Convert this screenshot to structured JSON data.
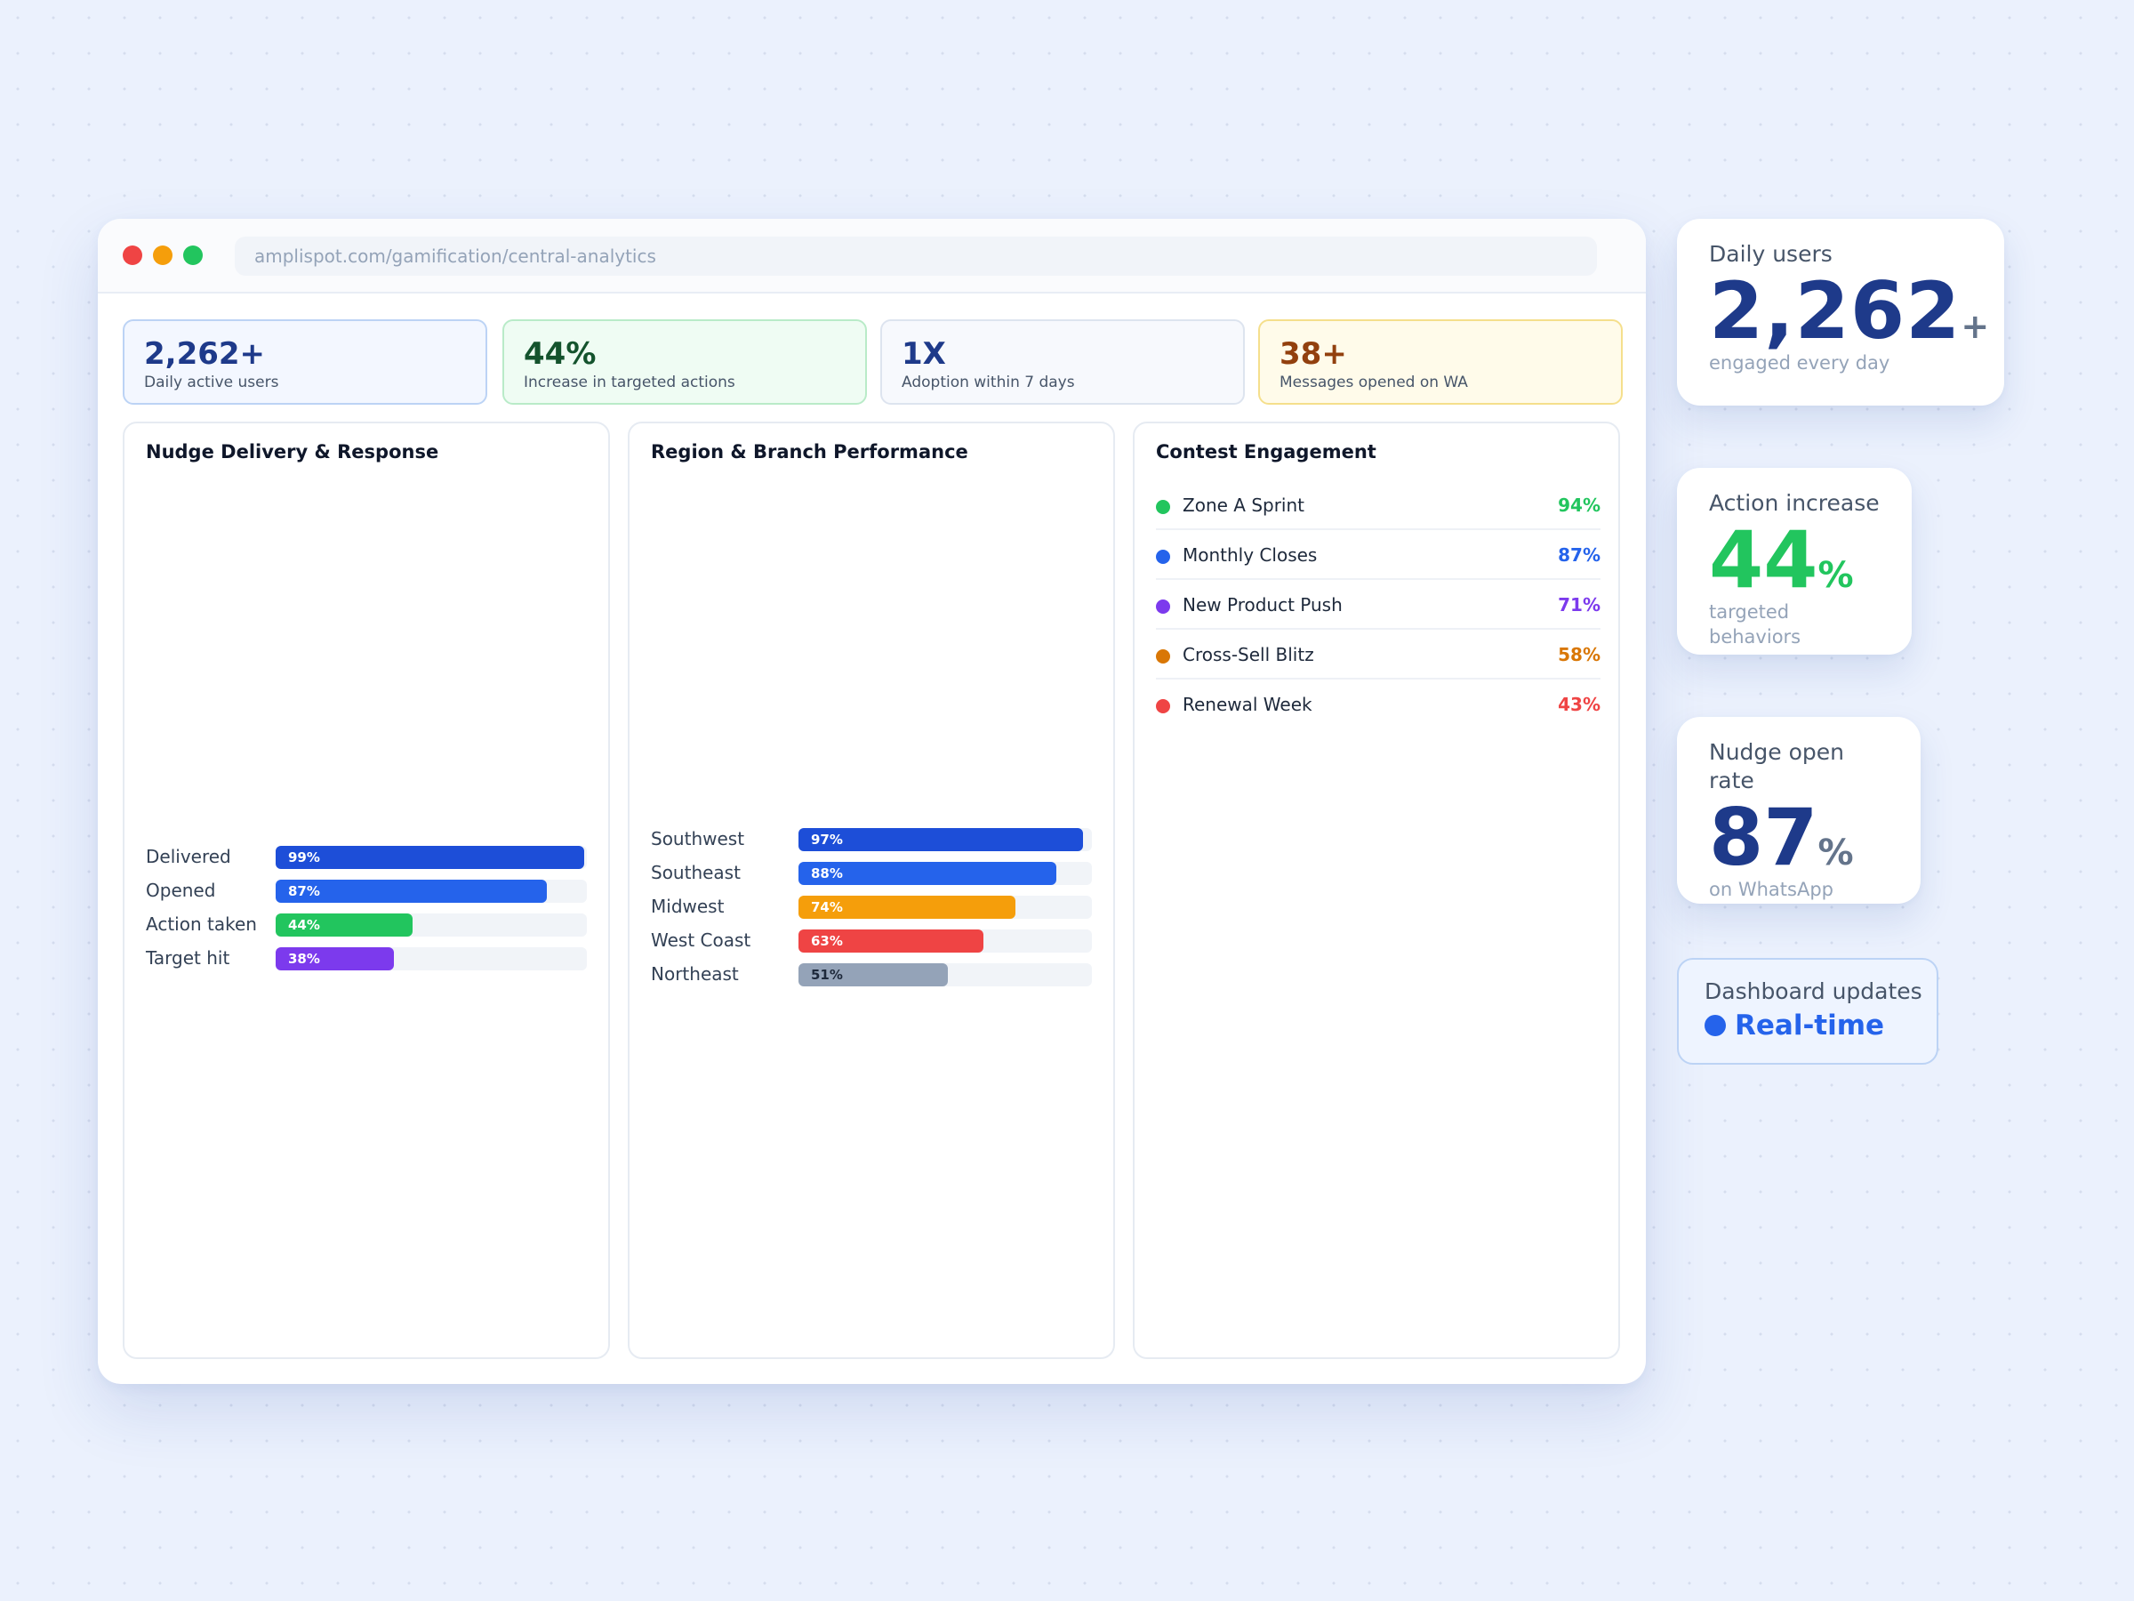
{
  "window": {
    "url": "amplispot.com/gamification/central-analytics"
  },
  "kpis": [
    {
      "value": "2,262+",
      "label": "Daily active users"
    },
    {
      "value": "44%",
      "label": "Increase in targeted actions"
    },
    {
      "value": "1X",
      "label": "Adoption within 7 days"
    },
    {
      "value": "38+",
      "label": "Messages opened on WA"
    }
  ],
  "nudge": {
    "title": "Nudge Delivery & Response",
    "rows": [
      {
        "label": "Delivered",
        "value": 99,
        "text": "99%",
        "color": "#1d4ed8"
      },
      {
        "label": "Opened",
        "value": 87,
        "text": "87%",
        "color": "#2563eb"
      },
      {
        "label": "Action taken",
        "value": 44,
        "text": "44%",
        "color": "#22c55e"
      },
      {
        "label": "Target hit",
        "value": 38,
        "text": "38%",
        "color": "#7c3aed"
      }
    ]
  },
  "region": {
    "title": "Region & Branch Performance",
    "rows": [
      {
        "label": "Southwest",
        "value": 97,
        "text": "97%",
        "color": "#1d4ed8"
      },
      {
        "label": "Southeast",
        "value": 88,
        "text": "88%",
        "color": "#2563eb"
      },
      {
        "label": "Midwest",
        "value": 74,
        "text": "74%",
        "color": "#f59e0b"
      },
      {
        "label": "West Coast",
        "value": 63,
        "text": "63%",
        "color": "#ef4444"
      },
      {
        "label": "Northeast",
        "value": 51,
        "text": "51%",
        "color": "#94a3b8"
      }
    ]
  },
  "contest": {
    "title": "Contest Engagement",
    "rows": [
      {
        "name": "Zone A Sprint",
        "pct": "94%",
        "color": "#22c55e"
      },
      {
        "name": "Monthly Closes",
        "pct": "87%",
        "color": "#2563eb"
      },
      {
        "name": "New Product Push",
        "pct": "71%",
        "color": "#7c3aed"
      },
      {
        "name": "Cross-Sell Blitz",
        "pct": "58%",
        "color": "#d97706"
      },
      {
        "name": "Renewal Week",
        "pct": "43%",
        "color": "#ef4444"
      }
    ]
  },
  "cards": {
    "daily": {
      "label": "Daily users",
      "value": "2,262",
      "suffix": "+",
      "sub": "engaged every day"
    },
    "action": {
      "label": "Action increase",
      "value": "44",
      "suffix": "%",
      "sub": "targeted behaviors"
    },
    "nudge": {
      "label": "Nudge open rate",
      "value": "87",
      "suffix": "%",
      "sub": "on WhatsApp"
    },
    "dashboard": {
      "label": "Dashboard updates",
      "status": "Real-time"
    }
  }
}
